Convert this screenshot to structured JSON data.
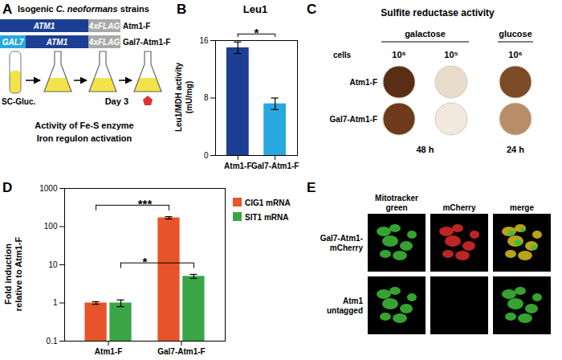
{
  "chart_data": [
    {
      "type": "bar",
      "title": "Leu1",
      "y_label": "Leu1/MDH activity\n(mU/mg)",
      "categories": [
        "Atm1-F",
        "Gal7-Atm1-F"
      ],
      "values": [
        15,
        7.2
      ],
      "errors": [
        0.8,
        0.8
      ],
      "colors": [
        "#1c3f94",
        "#29a8e0"
      ],
      "ylim": [
        0,
        16
      ],
      "yticks": [
        0,
        8,
        16
      ],
      "annotations": [
        {
          "text": "*",
          "from": "Atm1-F",
          "to": "Gal7-Atm1-F"
        }
      ]
    },
    {
      "type": "bar",
      "y_label": "Fold induction\nrelative to Atm1-F",
      "log": "y",
      "categories": [
        "Atm1-F",
        "Gal7-Atm1-F"
      ],
      "series": [
        {
          "name": "CIG1 mRNA",
          "color": "#e8542a",
          "values": [
            1,
            170
          ],
          "errors": [
            0.08,
            12
          ]
        },
        {
          "name": "SIT1 mRNA",
          "color": "#3aa546",
          "values": [
            1,
            5
          ],
          "errors": [
            0.2,
            0.6
          ]
        }
      ],
      "ylim": [
        0.1,
        1000
      ],
      "yticks": [
        0.1,
        1,
        10,
        100,
        1000
      ],
      "legend": "right",
      "annotations": [
        {
          "text": "***",
          "series": "CIG1 mRNA",
          "from": "Atm1-F",
          "to": "Gal7-Atm1-F"
        },
        {
          "text": "*",
          "series": "SIT1 mRNA",
          "from": "Atm1-F",
          "to": "Gal7-Atm1-F"
        }
      ]
    }
  ],
  "figure": {
    "panel_labels": [
      "A",
      "B",
      "C",
      "D",
      "E"
    ],
    "A": {
      "title": "Isogenic C. neoformans strains",
      "title_italic": "C. neoformans",
      "strains": [
        {
          "segments": [
            "ATM1",
            "4xFLAG"
          ],
          "name": "Atm1-F"
        },
        {
          "segments": [
            "GAL7",
            "ATM1",
            "4xFLAG"
          ],
          "name": "Gal7-Atm1-F"
        }
      ],
      "medium": "SC-Gluc.",
      "day": "Day 3",
      "readouts": [
        "Activity of Fe-S enzyme",
        "Iron regulon activation"
      ]
    },
    "C": {
      "title": "Sulfite reductase activity",
      "row_header": "cells",
      "rows": [
        "Atm1-F",
        "Gal7-Atm1-F"
      ],
      "conditions": [
        {
          "name": "galactose",
          "cells": [
            "10⁶",
            "10⁵"
          ],
          "time": "48 h"
        },
        {
          "name": "glucose",
          "cells": [
            "10⁶"
          ],
          "time": "24 h"
        }
      ]
    },
    "E": {
      "columns": [
        "Mitotracker\ngreen",
        "mCherry",
        "merge"
      ],
      "rows": [
        "Gal7-Atm1-\nmCherry",
        "Atm1\nuntagged"
      ]
    }
  }
}
